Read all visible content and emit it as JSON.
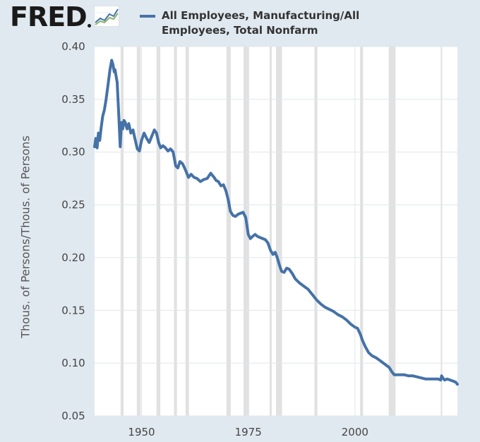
{
  "header": {
    "logo_text": "FRED",
    "logo_icon": "line-chart-icon"
  },
  "legend": {
    "series_label": "All Employees, Manufacturing/All Employees, Total Nonfarm"
  },
  "colors": {
    "series": "#4572a7",
    "background": "#e1e9f0",
    "plot_background": "#ffffff",
    "recession_band": "#e1e1e1",
    "grid": "#e1e6eb"
  },
  "chart_data": {
    "type": "line",
    "title": "",
    "xlabel": "",
    "ylabel": "Thous. of Persons/Thous. of Persons",
    "xlim": [
      1939,
      2024
    ],
    "ylim": [
      0.05,
      0.4
    ],
    "y_ticks": [
      "0.40",
      "0.35",
      "0.30",
      "0.25",
      "0.20",
      "0.15",
      "0.10",
      "0.05"
    ],
    "x_ticks": [
      "1950",
      "1975",
      "2000"
    ],
    "grid": true,
    "recessions": [
      [
        1945.1,
        1945.8
      ],
      [
        1948.9,
        1949.8
      ],
      [
        1953.5,
        1954.4
      ],
      [
        1957.6,
        1958.3
      ],
      [
        1960.3,
        1961.1
      ],
      [
        1969.9,
        1970.9
      ],
      [
        1973.9,
        1975.2
      ],
      [
        1980.0,
        1980.5
      ],
      [
        1981.5,
        1982.9
      ],
      [
        1990.5,
        1991.2
      ],
      [
        2001.2,
        2001.9
      ],
      [
        2007.9,
        2009.5
      ],
      [
        2020.1,
        2020.4
      ]
    ],
    "series": [
      {
        "name": "All Employees, Manufacturing/All Employees, Total Nonfarm",
        "x": [
          1939.0,
          1939.3,
          1939.6,
          1939.9,
          1940.2,
          1940.5,
          1940.9,
          1941.3,
          1941.7,
          1942.1,
          1942.6,
          1943.0,
          1943.3,
          1943.6,
          1943.8,
          1944.0,
          1944.3,
          1944.6,
          1945.0,
          1945.3,
          1945.6,
          1945.9,
          1946.2,
          1946.6,
          1947.0,
          1947.5,
          1948.0,
          1948.5,
          1949.0,
          1949.5,
          1950.0,
          1950.6,
          1951.2,
          1951.8,
          1952.4,
          1953.0,
          1953.5,
          1954.0,
          1954.5,
          1955.0,
          1955.6,
          1956.2,
          1956.8,
          1957.4,
          1958.0,
          1958.5,
          1959.0,
          1959.6,
          1960.3,
          1961.0,
          1961.6,
          1962.3,
          1963.0,
          1963.8,
          1964.6,
          1965.4,
          1966.2,
          1967.0,
          1967.5,
          1968.0,
          1968.6,
          1969.2,
          1969.8,
          1970.3,
          1970.8,
          1971.4,
          1972.0,
          1972.6,
          1973.2,
          1973.8,
          1974.4,
          1975.0,
          1975.5,
          1976.0,
          1976.6,
          1977.2,
          1977.8,
          1978.4,
          1979.0,
          1979.6,
          1980.2,
          1980.8,
          1981.3,
          1981.8,
          1982.3,
          1982.8,
          1983.4,
          1984.0,
          1984.6,
          1985.3,
          1986.0,
          1987.0,
          1988.0,
          1989.0,
          1990.0,
          1991.0,
          1992.0,
          1993.0,
          1994.0,
          1995.0,
          1996.0,
          1997.0,
          1998.0,
          1999.0,
          2000.0,
          2000.6,
          2001.2,
          2001.8,
          2002.5,
          2003.2,
          2004.0,
          2005.0,
          2006.0,
          2007.0,
          2008.0,
          2008.6,
          2009.2,
          2009.8,
          2010.5,
          2011.5,
          2012.5,
          2013.5,
          2014.5,
          2015.5,
          2016.5,
          2017.5,
          2018.5,
          2019.5,
          2020.1,
          2020.3,
          2020.6,
          2021.0,
          2021.6,
          2022.3,
          2023.0,
          2023.6,
          2024.0
        ],
        "values": [
          0.305,
          0.313,
          0.304,
          0.318,
          0.311,
          0.322,
          0.334,
          0.34,
          0.35,
          0.362,
          0.378,
          0.387,
          0.383,
          0.376,
          0.378,
          0.373,
          0.366,
          0.34,
          0.305,
          0.328,
          0.322,
          0.33,
          0.328,
          0.322,
          0.327,
          0.318,
          0.321,
          0.312,
          0.303,
          0.301,
          0.311,
          0.318,
          0.313,
          0.309,
          0.315,
          0.321,
          0.318,
          0.309,
          0.304,
          0.306,
          0.304,
          0.301,
          0.303,
          0.3,
          0.287,
          0.285,
          0.291,
          0.289,
          0.283,
          0.276,
          0.279,
          0.276,
          0.275,
          0.272,
          0.274,
          0.275,
          0.28,
          0.276,
          0.273,
          0.272,
          0.268,
          0.269,
          0.263,
          0.255,
          0.244,
          0.24,
          0.239,
          0.241,
          0.242,
          0.243,
          0.238,
          0.222,
          0.218,
          0.22,
          0.222,
          0.22,
          0.219,
          0.218,
          0.217,
          0.214,
          0.207,
          0.203,
          0.205,
          0.2,
          0.193,
          0.187,
          0.186,
          0.19,
          0.189,
          0.185,
          0.18,
          0.176,
          0.173,
          0.17,
          0.165,
          0.16,
          0.156,
          0.153,
          0.151,
          0.149,
          0.146,
          0.144,
          0.141,
          0.137,
          0.134,
          0.133,
          0.128,
          0.121,
          0.115,
          0.11,
          0.107,
          0.105,
          0.102,
          0.099,
          0.096,
          0.092,
          0.089,
          0.089,
          0.089,
          0.089,
          0.088,
          0.088,
          0.087,
          0.086,
          0.085,
          0.085,
          0.085,
          0.085,
          0.084,
          0.088,
          0.086,
          0.084,
          0.085,
          0.084,
          0.083,
          0.082,
          0.08
        ]
      }
    ]
  }
}
